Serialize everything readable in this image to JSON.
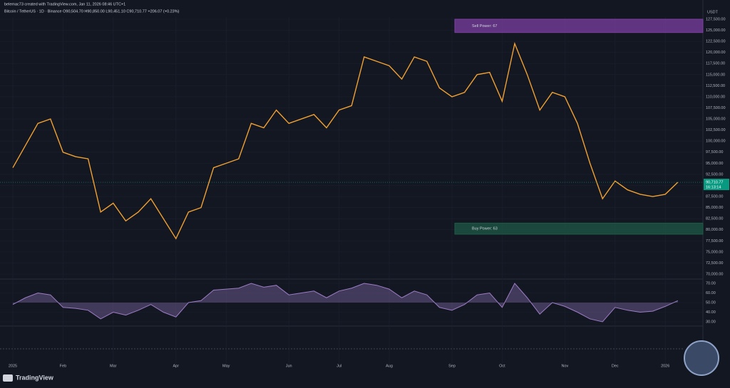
{
  "header": {
    "author_line": "belemac73 created with TradingView.com, Jan 11, 2026 08:46 UTC+1",
    "symbol_line": "Bitcoin / TetherUS · 1D · Binance  O90,504.70  H90,850.00  L90,451.10  C90,710.77  +206.07 (+0.23%)",
    "currency": "USDT",
    "logo": "TradingView"
  },
  "chart_data": [
    {
      "type": "line",
      "color": "#f0a030",
      "grid": true,
      "categories": [
        "2025",
        null,
        null,
        null,
        "Feb",
        null,
        null,
        null,
        "Mar",
        null,
        null,
        null,
        null,
        "Apr",
        null,
        null,
        null,
        "May",
        null,
        null,
        null,
        null,
        "Jun",
        null,
        null,
        null,
        "Jul",
        null,
        null,
        null,
        "Aug",
        null,
        null,
        null,
        null,
        "Sep",
        null,
        null,
        null,
        "Oct",
        null,
        null,
        null,
        null,
        "Nov",
        null,
        null,
        null,
        "Dec",
        null,
        null,
        null,
        "2026",
        null
      ],
      "values": [
        94000,
        99000,
        104000,
        105000,
        97500,
        96500,
        96000,
        84000,
        86000,
        82000,
        84000,
        87000,
        82500,
        78000,
        84000,
        85000,
        94000,
        95000,
        96000,
        104000,
        103000,
        107000,
        104000,
        105000,
        106000,
        103000,
        107000,
        108000,
        119000,
        118000,
        117000,
        114000,
        119000,
        118000,
        112000,
        110000,
        111000,
        115000,
        115500,
        109000,
        122000,
        115000,
        107000,
        111000,
        110000,
        104000,
        95000,
        87000,
        91000,
        89000,
        88000,
        87500,
        88000,
        90710.77
      ],
      "ylim": [
        70000,
        127500
      ],
      "yticks": [
        {
          "value": 70000,
          "label": "70,000.00"
        },
        {
          "value": 72500,
          "label": "72,500.00"
        },
        {
          "value": 75000,
          "label": "75,000.00"
        },
        {
          "value": 77500,
          "label": "77,500.00"
        },
        {
          "value": 80000,
          "label": "80,000.00"
        },
        {
          "value": 82500,
          "label": "82,500.00"
        },
        {
          "value": 85000,
          "label": "85,000.00"
        },
        {
          "value": 87500,
          "label": "87,500.00"
        },
        {
          "value": 90000,
          "label": "90,000.00"
        },
        {
          "value": 92500,
          "label": "92,500.00"
        },
        {
          "value": 95000,
          "label": "95,000.00"
        },
        {
          "value": 97500,
          "label": "97,500.00"
        },
        {
          "value": 100000,
          "label": "100,000.00"
        },
        {
          "value": 102500,
          "label": "102,500.00"
        },
        {
          "value": 105000,
          "label": "105,000.00"
        },
        {
          "value": 107500,
          "label": "107,500.00"
        },
        {
          "value": 110000,
          "label": "110,000.00"
        },
        {
          "value": 112500,
          "label": "112,500.00"
        },
        {
          "value": 115000,
          "label": "115,000.00"
        },
        {
          "value": 117500,
          "label": "117,500.00"
        },
        {
          "value": 120000,
          "label": "120,000.00"
        },
        {
          "value": 122500,
          "label": "122,500.00"
        },
        {
          "value": 125000,
          "label": "125,000.00"
        },
        {
          "value": 127500,
          "label": "127,500.00"
        }
      ],
      "last_price": {
        "value": 90710.77,
        "label": "90,710.77",
        "countdown": "16:13:14",
        "color": "#089981"
      },
      "zones": [
        {
          "label": "Sell Power: 67",
          "low": 124500,
          "high": 127500,
          "color": "#7b3fa0"
        },
        {
          "label": "Buy Power: 63",
          "low": 79000,
          "high": 81500,
          "color": "#1e5a46"
        }
      ]
    },
    {
      "type": "area",
      "color": "#9c7cc4",
      "values": [
        48,
        55,
        60,
        58,
        45,
        44,
        42,
        33,
        40,
        37,
        42,
        48,
        40,
        35,
        50,
        52,
        63,
        64,
        65,
        70,
        66,
        68,
        58,
        60,
        62,
        55,
        62,
        65,
        70,
        68,
        64,
        55,
        62,
        58,
        45,
        42,
        48,
        58,
        60,
        45,
        70,
        55,
        38,
        50,
        46,
        40,
        33,
        30,
        45,
        42,
        40,
        41,
        46,
        52
      ],
      "ylim": [
        30,
        70
      ],
      "yticks": [
        {
          "value": 30,
          "label": "30.00"
        },
        {
          "value": 40,
          "label": "40.00"
        },
        {
          "value": 50,
          "label": "50.00"
        },
        {
          "value": 60,
          "label": "60.00"
        },
        {
          "value": 70,
          "label": "70.00"
        }
      ]
    }
  ]
}
